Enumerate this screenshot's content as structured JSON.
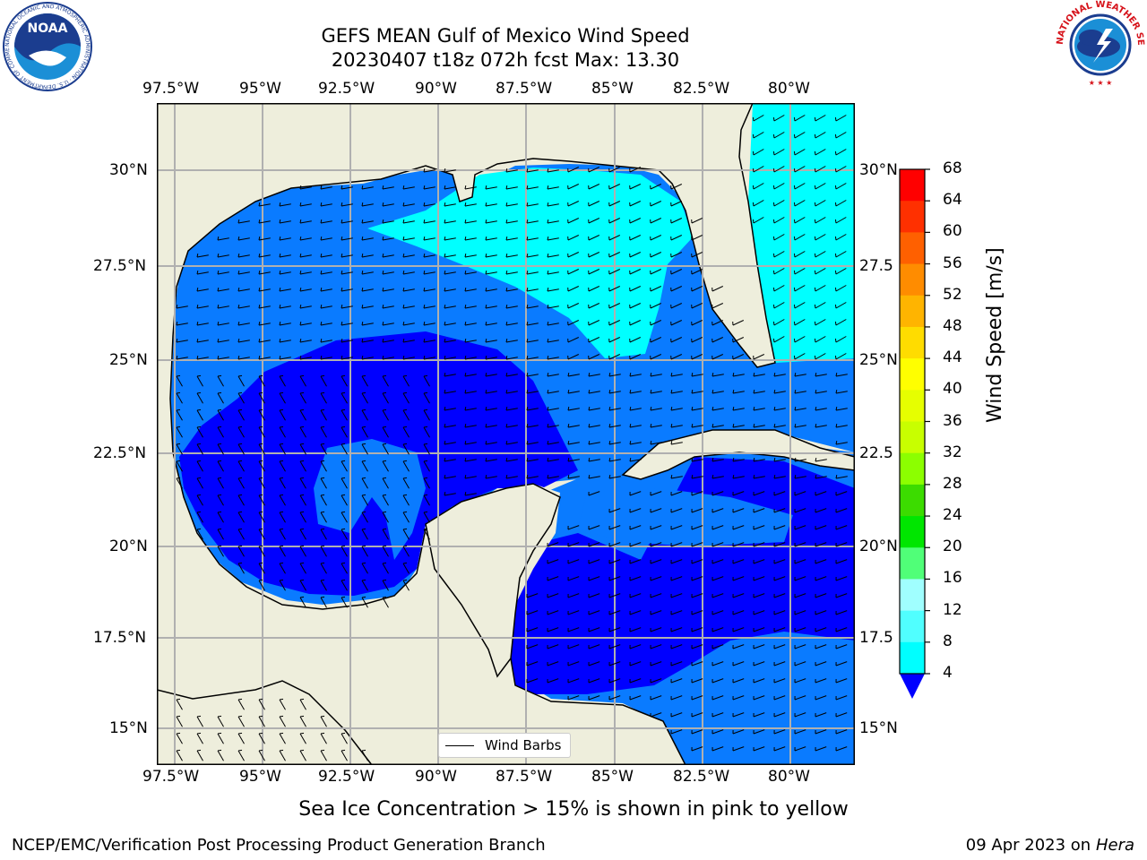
{
  "header": {
    "title_line1": "GEFS MEAN Gulf of Mexico Wind Speed",
    "title_line2": "20230407 t18z 072h fcst   Max: 13.30"
  },
  "logos": {
    "noaa_label": "NOAA",
    "noaa_ring_text": "NATIONAL OCEANIC AND ATMOSPHERIC ADMINISTRATION · U.S. DEPARTMENT OF COMMERCE",
    "nws_ring_text": "NATIONAL WEATHER SERVICE"
  },
  "map": {
    "lon_labels": [
      "97.5°W",
      "95°W",
      "92.5°W",
      "90°W",
      "87.5°W",
      "85°W",
      "82.5°W",
      "80°W"
    ],
    "lat_labels_left": [
      "30°N",
      "27.5°N",
      "25°N",
      "22.5°N",
      "20°N",
      "17.5°N",
      "15°N"
    ],
    "lat_labels_right": [
      "30°N",
      "27.5",
      "25°N",
      "22.5",
      "20°N",
      "17.5",
      "15°N"
    ],
    "legend_label": "Wind Barbs",
    "colors": {
      "land": "#eeeedc",
      "gridline": "#b0b0b0",
      "speed_4_8": "#0a7bff",
      "speed_0_4": "#0000ff",
      "speed_8_12": "#00ffff"
    }
  },
  "colorbar": {
    "title": "Wind Speed [m/s]",
    "ticks": [
      "68",
      "64",
      "60",
      "56",
      "52",
      "48",
      "44",
      "40",
      "36",
      "32",
      "28",
      "24",
      "20",
      "16",
      "12",
      "8",
      "4"
    ],
    "colors": [
      "#ff0000",
      "#ff3000",
      "#ff6000",
      "#ff8c00",
      "#ffb400",
      "#ffdc00",
      "#ffff00",
      "#e6ff00",
      "#c8ff00",
      "#8cff00",
      "#3cdc00",
      "#00e600",
      "#50ff78",
      "#a0ffff",
      "#50ffff",
      "#00ffff",
      "#0a7bff"
    ],
    "extend_color": "#0000ff"
  },
  "footer": {
    "note": "Sea Ice Concentration > 15% is shown in pink to yellow",
    "branch": "NCEP/EMC/Verification Post Processing Product Generation Branch",
    "date": "09 Apr 2023 on ",
    "machine": "Hera"
  }
}
